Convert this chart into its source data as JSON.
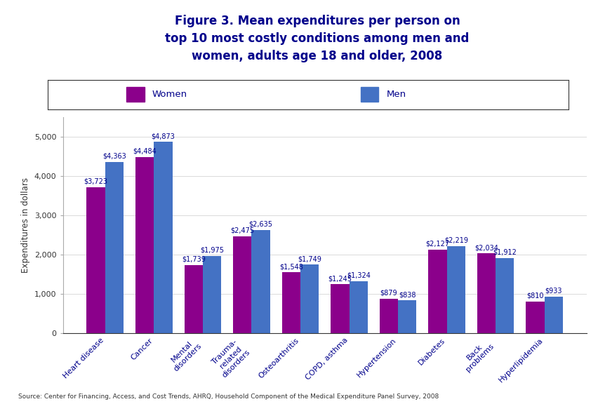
{
  "title": "Figure 3. Mean expenditures per person on\ntop 10 most costly conditions among men and\nwomen, adults age 18 and older, 2008",
  "categories": [
    "Heart disease",
    "Cancer",
    "Mental\ndisorders",
    "Trauma-\nrelated\ndisorders",
    "Osteoarthritis",
    "COPD, asthma",
    "Hypertension",
    "Diabetes",
    "Back\nproblems",
    "Hyperlipidemia"
  ],
  "women_values": [
    3723,
    4484,
    1739,
    2475,
    1548,
    1245,
    879,
    2127,
    2034,
    810
  ],
  "men_values": [
    4363,
    4873,
    1975,
    2635,
    1749,
    1324,
    838,
    2219,
    1912,
    933
  ],
  "women_labels": [
    "$3,723",
    "$4,484",
    "$1,739",
    "$2,475",
    "$1,548",
    "$1,245",
    "$879",
    "$2,127",
    "$2,034",
    "$810"
  ],
  "men_labels": [
    "$4,363",
    "$4,873",
    "$1,975",
    "$2,635",
    "$1,749",
    "$1,324",
    "$838",
    "$2,219",
    "$1,912",
    "$933"
  ],
  "women_color": "#8B008B",
  "men_color": "#4472C4",
  "ylabel": "Expenditures in dollars",
  "ylim": [
    0,
    5500
  ],
  "yticks": [
    0,
    1000,
    2000,
    3000,
    4000,
    5000
  ],
  "legend_women": "Women",
  "legend_men": "Men",
  "source_text": "Source: Center for Financing, Access, and Cost Trends, AHRQ, Household Component of the Medical Expenditure Panel Survey, 2008",
  "background_color": "#ffffff",
  "header_bar_color": "#00008B",
  "label_fontsize": 7,
  "tick_fontsize": 8,
  "title_fontsize": 12,
  "label_color": "#00008B"
}
